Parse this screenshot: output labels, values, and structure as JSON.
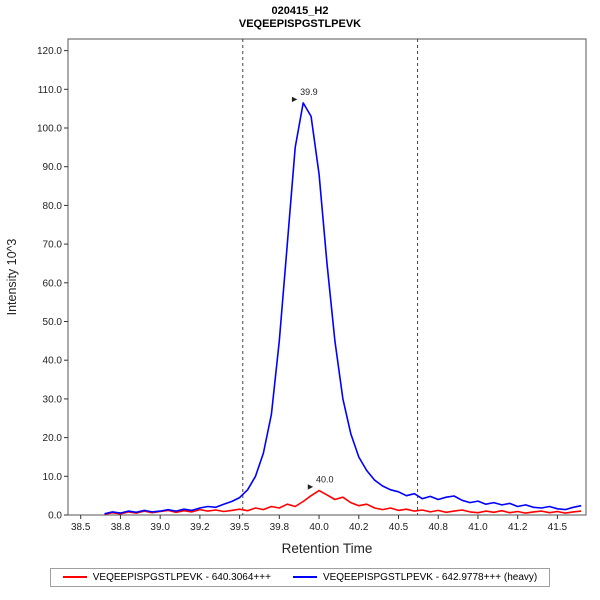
{
  "header": {
    "title_line1": "020415_H2",
    "title_line2": "VEQEEPISPGSTLPEVK"
  },
  "axes": {
    "x_label": "Retention Time",
    "y_label": "Intensity 10^3"
  },
  "legend": [
    {
      "label": "VEQEEPISPGSTLPEVK - 640.3064+++",
      "color": "#ff0000"
    },
    {
      "label": "VEQEEPISPGSTLPEVK - 642.9778+++ (heavy)",
      "color": "#0000ff"
    }
  ],
  "chart_data": {
    "type": "line",
    "title": "020415_H2 / VEQEEPISPGSTLPEVK",
    "xlabel": "Retention Time",
    "ylabel": "Intensity 10^3",
    "xlim": [
      38.42,
      41.68
    ],
    "ylim": [
      0,
      123
    ],
    "grid": false,
    "legend_position": "bottom",
    "boundaries": [
      39.52,
      40.62
    ],
    "x_ticks": {
      "values": [
        38.5,
        38.75,
        39.0,
        39.25,
        39.5,
        39.75,
        40.0,
        40.25,
        40.5,
        40.75,
        41.0,
        41.25,
        41.5
      ],
      "labels": [
        "38.5",
        "38.8",
        "39.0",
        "39.2",
        "39.5",
        "39.8",
        "40.0",
        "40.2",
        "40.5",
        "40.8",
        "41.0",
        "41.2",
        "41.5"
      ]
    },
    "y_ticks": {
      "values": [
        0,
        10,
        20,
        30,
        40,
        50,
        60,
        70,
        80,
        90,
        100,
        110,
        120
      ],
      "labels": [
        "0.0",
        "10.0",
        "20.0",
        "30.0",
        "40.0",
        "50.0",
        "60.0",
        "70.0",
        "80.0",
        "90.0",
        "100.0",
        "110.0",
        "120.0"
      ]
    },
    "x": [
      38.65,
      38.7,
      38.75,
      38.8,
      38.85,
      38.9,
      38.95,
      39.0,
      39.05,
      39.1,
      39.15,
      39.2,
      39.25,
      39.3,
      39.35,
      39.4,
      39.45,
      39.5,
      39.55,
      39.6,
      39.65,
      39.7,
      39.75,
      39.8,
      39.85,
      39.9,
      39.95,
      40.0,
      40.05,
      40.1,
      40.15,
      40.2,
      40.25,
      40.3,
      40.35,
      40.4,
      40.45,
      40.5,
      40.55,
      40.6,
      40.65,
      40.7,
      40.75,
      40.8,
      40.85,
      40.9,
      40.95,
      41.0,
      41.05,
      41.1,
      41.15,
      41.2,
      41.25,
      41.3,
      41.35,
      41.4,
      41.45,
      41.5,
      41.55,
      41.6,
      41.65
    ],
    "series": [
      {
        "name": "light",
        "label": "VEQEEPISPGSTLPEVK - 640.3064+++",
        "color": "#ff0000",
        "values": [
          0.2,
          0.6,
          0.3,
          0.8,
          0.5,
          1.0,
          0.6,
          0.9,
          1.2,
          0.7,
          1.1,
          0.8,
          1.4,
          1.0,
          1.3,
          0.9,
          1.2,
          1.5,
          1.1,
          1.8,
          1.4,
          2.2,
          1.8,
          2.8,
          2.2,
          3.5,
          5.0,
          6.3,
          5.2,
          4.0,
          4.6,
          3.2,
          2.4,
          2.8,
          1.8,
          1.4,
          1.8,
          1.2,
          1.5,
          1.0,
          1.3,
          0.8,
          1.2,
          0.7,
          1.0,
          1.3,
          0.8,
          0.6,
          1.0,
          0.7,
          1.1,
          0.6,
          0.9,
          0.5,
          0.8,
          1.0,
          0.6,
          0.9,
          0.5,
          0.8,
          1.0
        ],
        "peak_annotation": {
          "x": 40.0,
          "y": 6.3,
          "label": "40.0"
        }
      },
      {
        "name": "heavy",
        "label": "VEQEEPISPGSTLPEVK - 642.9778+++ (heavy)",
        "color": "#0000ff",
        "values": [
          0.3,
          0.8,
          0.5,
          1.0,
          0.7,
          1.2,
          0.8,
          1.0,
          1.4,
          1.0,
          1.5,
          1.2,
          1.8,
          2.2,
          2.0,
          2.8,
          3.5,
          4.5,
          6.5,
          10.0,
          16.0,
          26.0,
          45.0,
          70.0,
          95.0,
          106.5,
          103.0,
          88.0,
          65.0,
          45.0,
          30.0,
          21.0,
          15.0,
          11.5,
          9.0,
          7.5,
          6.5,
          6.0,
          5.0,
          5.5,
          4.2,
          4.8,
          4.0,
          4.6,
          4.9,
          3.8,
          3.2,
          3.6,
          2.8,
          3.2,
          2.6,
          3.0,
          2.2,
          2.6,
          2.0,
          1.8,
          2.2,
          1.6,
          1.4,
          2.0,
          2.4
        ],
        "peak_annotation": {
          "x": 39.9,
          "y": 106.5,
          "label": "39.9"
        }
      }
    ]
  }
}
